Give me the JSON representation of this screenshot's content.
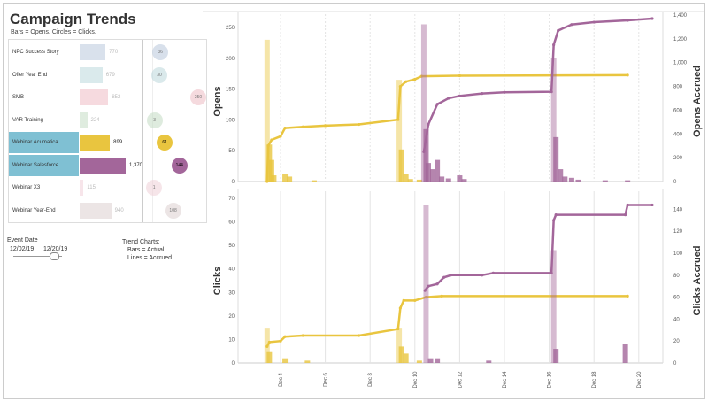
{
  "title": "Campaign Trends",
  "subtitle": "Bars = Opens. Circles = Clicks.",
  "campaigns": [
    {
      "name": "NPC Success Story",
      "opens": "770",
      "clicks": "36",
      "color": "#b9c8dc",
      "selected": false
    },
    {
      "name": "Offer Year End",
      "opens": "679",
      "clicks": "30",
      "color": "#bcd8dc",
      "selected": false
    },
    {
      "name": "SMB",
      "opens": "852",
      "clicks": "250",
      "color": "#eebcc4",
      "selected": false
    },
    {
      "name": "VAR Training",
      "opens": "224",
      "clicks": "3",
      "color": "#c4dcc4",
      "selected": false
    },
    {
      "name": "Webinar Acumatica",
      "opens": "899",
      "clicks": "61",
      "color": "#e9c53f",
      "selected": true
    },
    {
      "name": "Webinar Salesforce",
      "opens": "1,370",
      "clicks": "144",
      "color": "#a3669a",
      "selected": true
    },
    {
      "name": "Webinar X3",
      "opens": "115",
      "clicks": "1",
      "color": "#f0d0d8",
      "selected": false
    },
    {
      "name": "Webinar Year-End",
      "opens": "940",
      "clicks": "108",
      "color": "#ddd0d0",
      "selected": false
    }
  ],
  "filter": {
    "label": "Event Date",
    "start": "12/02/19",
    "end": "12/20/19"
  },
  "legend_note": {
    "title": "Trend Charts:",
    "line1": "Bars = Actual",
    "line2": "Lines = Accrued"
  },
  "chart_data": [
    {
      "type": "bar+line",
      "ylabel": "Opens",
      "y2label": "Opens Accrued",
      "ylim": [
        0,
        260
      ],
      "y2lim": [
        0,
        1400
      ],
      "yticks": [
        "0",
        "50",
        "100",
        "150",
        "200",
        "250"
      ],
      "y2ticks": [
        "0",
        "200",
        "400",
        "600",
        "800",
        "1,000",
        "1,200",
        "1,400"
      ],
      "series": [
        {
          "name": "Webinar Acumatica",
          "color": "#e9c53f",
          "bars": [
            [
              3.4,
              230
            ],
            [
              3.5,
              60
            ],
            [
              3.6,
              35
            ],
            [
              3.7,
              10
            ],
            [
              4.2,
              12
            ],
            [
              4.4,
              8
            ],
            [
              5.5,
              2
            ],
            [
              9.3,
              165
            ],
            [
              9.4,
              52
            ],
            [
              9.6,
              12
            ],
            [
              9.8,
              4
            ],
            [
              10.2,
              3
            ]
          ],
          "accrued": [
            [
              3.4,
              0
            ],
            [
              3.45,
              300
            ],
            [
              3.6,
              350
            ],
            [
              4.0,
              380
            ],
            [
              4.2,
              450
            ],
            [
              5,
              460
            ],
            [
              6,
              470
            ],
            [
              7.5,
              480
            ],
            [
              9.25,
              520
            ],
            [
              9.35,
              800
            ],
            [
              9.6,
              840
            ],
            [
              10,
              860
            ],
            [
              10.3,
              885
            ],
            [
              12,
              890
            ],
            [
              19.5,
              895
            ]
          ]
        },
        {
          "name": "Webinar Salesforce",
          "color": "#a3669a",
          "bars": [
            [
              10.4,
              255
            ],
            [
              10.5,
              85
            ],
            [
              10.6,
              30
            ],
            [
              10.8,
              20
            ],
            [
              11.0,
              35
            ],
            [
              11.2,
              8
            ],
            [
              11.5,
              5
            ],
            [
              12.0,
              10
            ],
            [
              12.2,
              4
            ],
            [
              16.2,
              200
            ],
            [
              16.3,
              72
            ],
            [
              16.5,
              20
            ],
            [
              16.7,
              8
            ],
            [
              17.0,
              6
            ],
            [
              17.3,
              3
            ],
            [
              18.5,
              2
            ],
            [
              19.5,
              2
            ]
          ],
          "accrued": [
            [
              10.4,
              250
            ],
            [
              10.6,
              480
            ],
            [
              11,
              650
            ],
            [
              11.5,
              700
            ],
            [
              12,
              720
            ],
            [
              13,
              740
            ],
            [
              14,
              750
            ],
            [
              16.1,
              755
            ],
            [
              16.2,
              1150
            ],
            [
              16.4,
              1270
            ],
            [
              17,
              1320
            ],
            [
              18,
              1340
            ],
            [
              19.5,
              1355
            ],
            [
              20.6,
              1370
            ]
          ]
        }
      ]
    },
    {
      "type": "bar+line",
      "ylabel": "Clicks",
      "y2label": "Clicks Accrued",
      "ylim": [
        0,
        70
      ],
      "y2lim": [
        0,
        150
      ],
      "yticks": [
        "0",
        "10",
        "20",
        "30",
        "40",
        "50",
        "60",
        "70"
      ],
      "y2ticks": [
        "0",
        "20",
        "40",
        "60",
        "80",
        "100",
        "120",
        "140"
      ],
      "xticks": [
        "Dec 4",
        "Dec 6",
        "Dec 8",
        "Dec 10",
        "Dec 12",
        "Dec 14",
        "Dec 16",
        "Dec 18",
        "Dec 20"
      ],
      "series": [
        {
          "name": "Webinar Acumatica",
          "color": "#e9c53f",
          "bars": [
            [
              3.4,
              15
            ],
            [
              3.5,
              5
            ],
            [
              4.2,
              2
            ],
            [
              5.2,
              1
            ],
            [
              9.3,
              15
            ],
            [
              9.4,
              7
            ],
            [
              9.6,
              4
            ],
            [
              10.2,
              1
            ]
          ],
          "accrued": [
            [
              3.4,
              15
            ],
            [
              3.5,
              19
            ],
            [
              4,
              20
            ],
            [
              4.2,
              24
            ],
            [
              5,
              25
            ],
            [
              7.5,
              25
            ],
            [
              9.25,
              31
            ],
            [
              9.35,
              50
            ],
            [
              9.5,
              57
            ],
            [
              10,
              57
            ],
            [
              10.5,
              60
            ],
            [
              11.2,
              61
            ],
            [
              19.5,
              61
            ]
          ]
        },
        {
          "name": "Webinar Salesforce",
          "color": "#a3669a",
          "bars": [
            [
              10.5,
              67
            ],
            [
              10.7,
              2
            ],
            [
              11.0,
              2
            ],
            [
              13.3,
              1
            ],
            [
              16.2,
              48
            ],
            [
              16.3,
              6
            ],
            [
              19.4,
              8
            ]
          ],
          "accrued": [
            [
              10.45,
              66
            ],
            [
              10.6,
              70
            ],
            [
              11,
              72
            ],
            [
              11.3,
              78
            ],
            [
              11.6,
              80
            ],
            [
              13,
              80
            ],
            [
              13.5,
              82
            ],
            [
              16.1,
              82
            ],
            [
              16.2,
              130
            ],
            [
              16.3,
              135
            ],
            [
              19.4,
              135
            ],
            [
              19.5,
              144
            ],
            [
              20.6,
              144
            ]
          ]
        }
      ]
    }
  ]
}
